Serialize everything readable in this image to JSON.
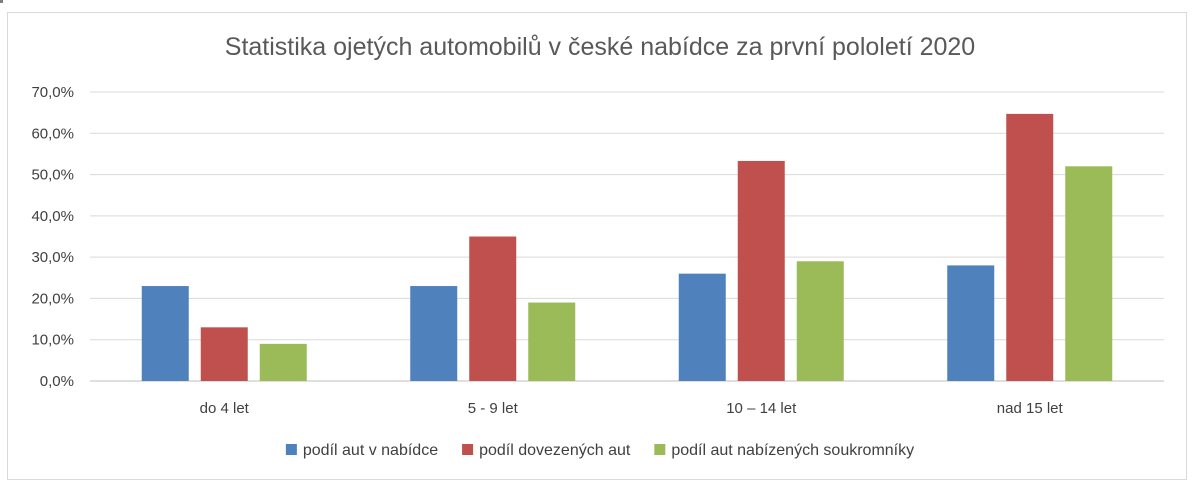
{
  "chart_data": {
    "type": "bar",
    "title": "Statistika ojetých automobilů v české nabídce za první pololetí 2020",
    "categories": [
      "do 4 let",
      "5 - 9 let",
      "10 – 14 let",
      "nad 15 let"
    ],
    "series": [
      {
        "name": "podíl aut v nabídce",
        "color": "#4f81bd",
        "values": [
          23,
          23,
          26,
          28
        ]
      },
      {
        "name": "podíl dovezených aut",
        "color": "#c0504d",
        "values": [
          13,
          35,
          53.3,
          64.7
        ]
      },
      {
        "name": "podíl aut nabízených soukromníky",
        "color": "#9bbb59",
        "values": [
          9,
          19,
          29,
          52
        ]
      }
    ],
    "ylim": [
      0,
      70
    ],
    "yticks": [
      "0,0%",
      "10,0%",
      "20,0%",
      "30,0%",
      "40,0%",
      "50,0%",
      "60,0%",
      "70,0%"
    ],
    "grid": true,
    "legend_position": "bottom"
  }
}
